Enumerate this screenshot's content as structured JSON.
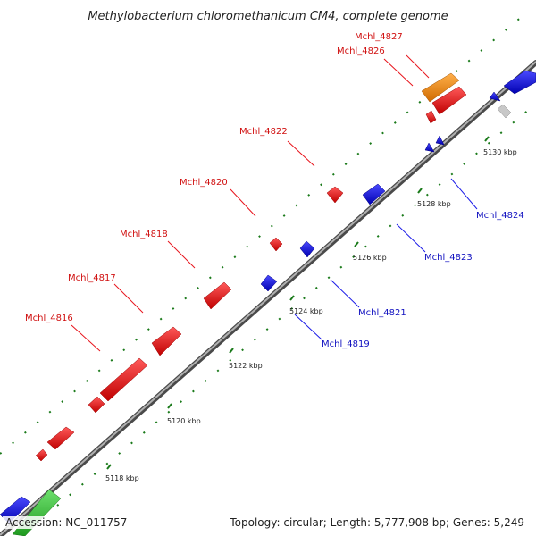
{
  "title": "Methylobacterium chloromethanicum CM4, complete genome",
  "accession_label": "Accession: NC_011757",
  "summary_label": "Topology: circular; Length: 5,777,908 bp; Genes: 5,249",
  "colors": {
    "forward_gene": "#e8141c",
    "reverse_gene": "#1c1ce8",
    "highlight_gene": "#f5921e",
    "green_gene": "#3bbf3b",
    "grey_gene": "#c0c0c0",
    "backbone": "#8a8a8a",
    "tick": "#1a7a1a",
    "forward_label": "#d01010",
    "reverse_label": "#1010c0"
  },
  "ticks": [
    "5118 kbp",
    "5120 kbp",
    "5122 kbp",
    "5124 kbp",
    "5126 kbp",
    "5128 kbp",
    "5130 kbp"
  ],
  "forward_labels": [
    "Mchl_4827",
    "Mchl_4826",
    "Mchl_4822",
    "Mchl_4820",
    "Mchl_4818",
    "Mchl_4817",
    "Mchl_4816"
  ],
  "reverse_labels": [
    "Mchl_4824",
    "Mchl_4823",
    "Mchl_4821",
    "Mchl_4819"
  ]
}
